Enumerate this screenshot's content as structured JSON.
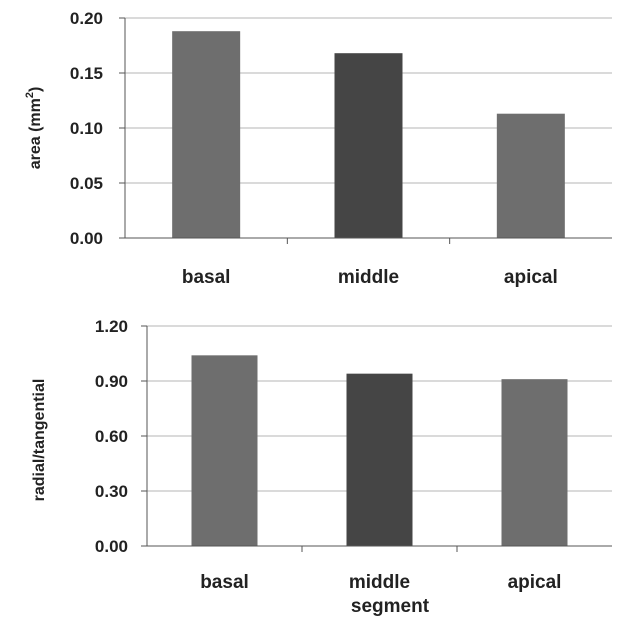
{
  "chart_data": [
    {
      "type": "bar",
      "categories": [
        "basal",
        "middle",
        "apical"
      ],
      "values": [
        0.188,
        0.168,
        0.113
      ],
      "ylabel": "area (mm²)",
      "ylabel_main": "area (mm",
      "ylabel_sup": "2",
      "ylabel_close": ")",
      "xlabel": "",
      "ylim": [
        0,
        0.2
      ],
      "yticks": [
        "0.00",
        "0.05",
        "0.10",
        "0.15",
        "0.20"
      ],
      "grid": true,
      "colors": [
        "#6e6e6e",
        "#454545",
        "#6e6e6e"
      ]
    },
    {
      "type": "bar",
      "categories": [
        "basal",
        "middle",
        "apical"
      ],
      "values": [
        1.04,
        0.94,
        0.91
      ],
      "ylabel": "radial/tangential",
      "xlabel": "segment",
      "ylim": [
        0,
        1.2
      ],
      "yticks": [
        "0.00",
        "0.30",
        "0.60",
        "0.90",
        "1.20"
      ],
      "grid": true,
      "colors": [
        "#6e6e6e",
        "#454545",
        "#6e6e6e"
      ]
    }
  ]
}
